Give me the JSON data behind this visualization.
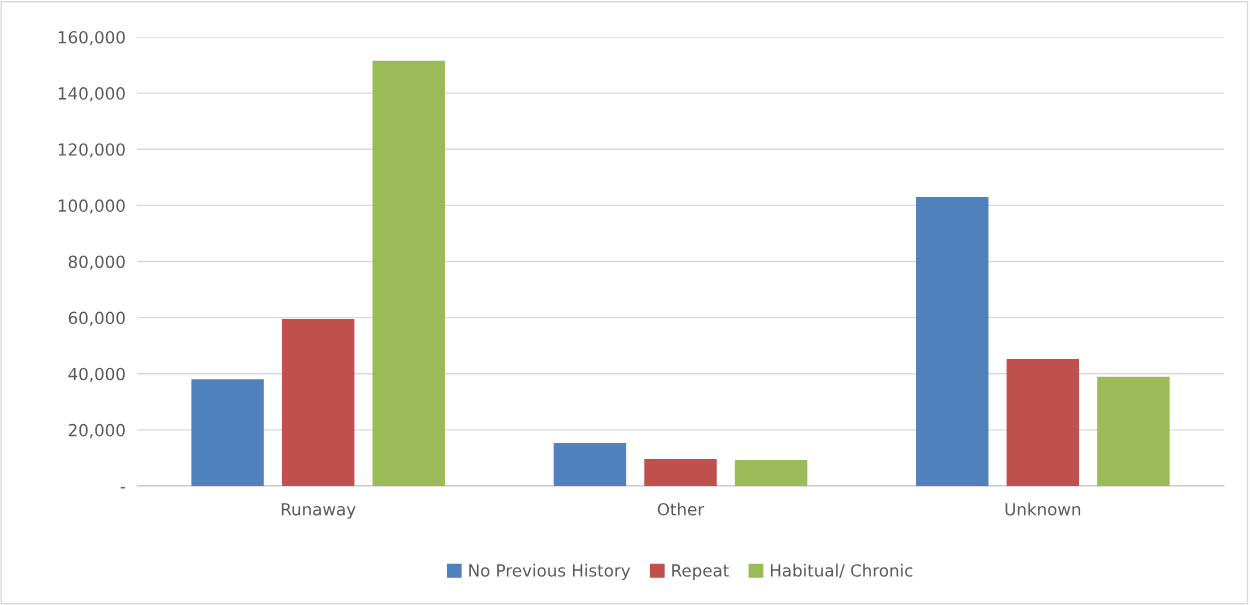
{
  "chart_data": {
    "type": "bar",
    "categories": [
      "Runaway",
      "Other",
      "Unknown"
    ],
    "series": [
      {
        "name": "No Previous History",
        "color": "#4f81bd",
        "values": [
          38000,
          15300,
          103000
        ]
      },
      {
        "name": "Repeat",
        "color": "#c0504d",
        "values": [
          59500,
          9600,
          45300
        ]
      },
      {
        "name": "Habitual/ Chronic",
        "color": "#9bbb59",
        "values": [
          151500,
          9300,
          38900
        ]
      }
    ],
    "ylim": [
      0,
      160000
    ],
    "yticks": [
      {
        "value": 0,
        "label": "-"
      },
      {
        "value": 20000,
        "label": "20,000"
      },
      {
        "value": 40000,
        "label": "40,000"
      },
      {
        "value": 60000,
        "label": "60,000"
      },
      {
        "value": 80000,
        "label": "80,000"
      },
      {
        "value": 100000,
        "label": "100,000"
      },
      {
        "value": 120000,
        "label": "120,000"
      },
      {
        "value": 140000,
        "label": "140,000"
      },
      {
        "value": 160000,
        "label": "160,000"
      }
    ],
    "grid": "y",
    "legend": "bottom"
  }
}
